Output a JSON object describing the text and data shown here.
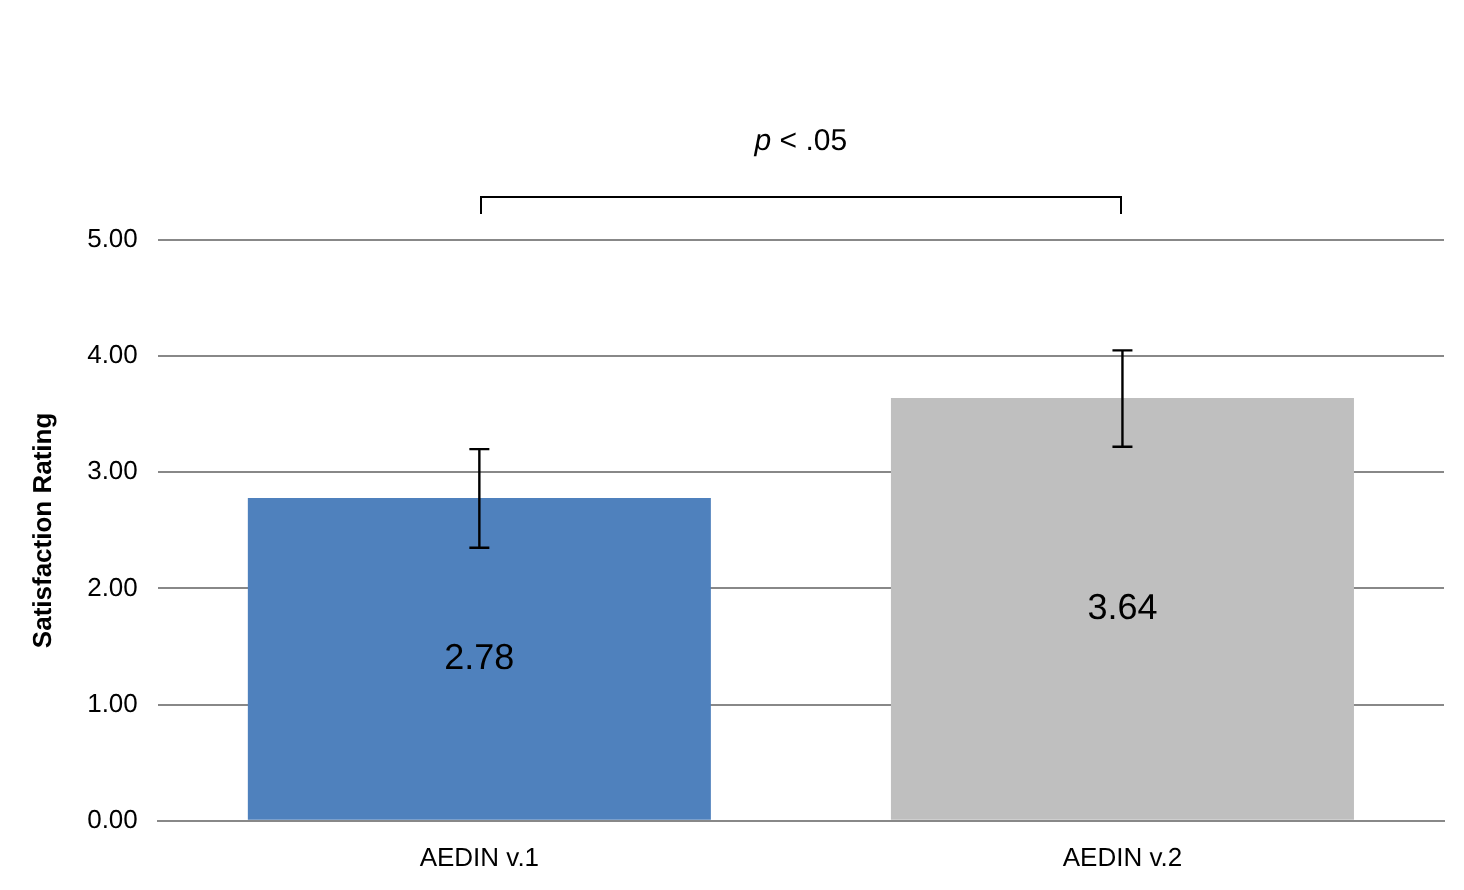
{
  "chart_data": {
    "type": "bar",
    "categories": [
      "AEDIN v.1",
      "AEDIN v.2"
    ],
    "values": [
      2.78,
      3.64
    ],
    "colors": [
      "#4f81bd",
      "#bfbfbf"
    ],
    "errors": [
      [
        2.35,
        3.2
      ],
      [
        3.22,
        4.05
      ]
    ],
    "ylabel": "Satisfaction Rating",
    "ylim": [
      0,
      5
    ],
    "yticks": [
      {
        "value": 0,
        "label": "0.00"
      },
      {
        "value": 1,
        "label": "1.00"
      },
      {
        "value": 2,
        "label": "2.00"
      },
      {
        "value": 3,
        "label": "3.00"
      },
      {
        "value": 4,
        "label": "4.00"
      },
      {
        "value": 5,
        "label": "5.00"
      }
    ],
    "grid": "y",
    "legend": false,
    "data_labels": true,
    "annotations": [
      "p < .05"
    ]
  }
}
